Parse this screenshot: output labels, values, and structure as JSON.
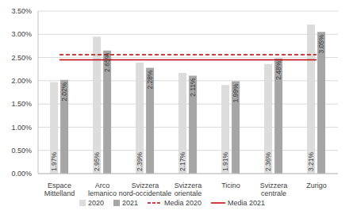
{
  "chart_data": {
    "type": "bar",
    "categories": [
      "Espace Mittelland",
      "Arco lemanico",
      "Svizzera nord-occidentale",
      "Svizzera orientale",
      "Ticino",
      "Svizzera centrale",
      "Zurigo"
    ],
    "series": [
      {
        "name": "2020",
        "type": "bar",
        "color": "#dcdcdc",
        "values": [
          1.97,
          2.95,
          2.39,
          2.17,
          1.91,
          2.36,
          3.21
        ],
        "value_labels": [
          "1.97%",
          "2.95%",
          "2.39%",
          "2.17%",
          "1.91%",
          "2.36%",
          "3.21%"
        ]
      },
      {
        "name": "2021",
        "type": "bar",
        "color": "#a6a6a6",
        "values": [
          2.02,
          2.65,
          2.28,
          2.11,
          1.99,
          2.48,
          3.05
        ],
        "value_labels": [
          "2.02%",
          "2.65%",
          "2.28%",
          "2.11%",
          "1.99%",
          "2.48%",
          "3.05%"
        ]
      },
      {
        "name": "Media 2020",
        "type": "line",
        "color": "#c00000",
        "line_style": "dashed",
        "values": [
          2.56,
          2.56,
          2.56,
          2.56,
          2.56,
          2.56,
          2.56
        ]
      },
      {
        "name": "Media 2021",
        "type": "line",
        "color": "#c00000",
        "line_style": "solid",
        "values": [
          2.45,
          2.45,
          2.45,
          2.45,
          2.45,
          2.45,
          2.45
        ]
      }
    ],
    "ylim": [
      0,
      3.5
    ],
    "yticks": [
      {
        "value": 0,
        "label": "0.00%"
      },
      {
        "value": 0.5,
        "label": "0.50%"
      },
      {
        "value": 1,
        "label": "1.00%"
      },
      {
        "value": 1.5,
        "label": "1.50%"
      },
      {
        "value": 2,
        "label": "2.00%"
      },
      {
        "value": 2.5,
        "label": "2.50%"
      },
      {
        "value": 3,
        "label": "3.00%"
      },
      {
        "value": 3.5,
        "label": "3.50%"
      }
    ],
    "grid": true,
    "data_labels": true,
    "legend": "bottom"
  }
}
